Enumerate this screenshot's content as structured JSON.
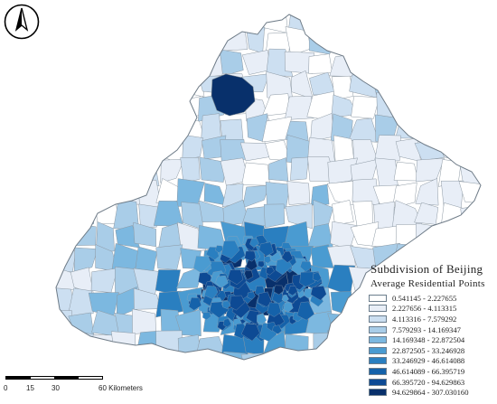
{
  "map": {
    "title": "Subdivision of Beijing",
    "subtitle": "Average Residential Points",
    "outline_color": "#7f8b96",
    "legend": [
      {
        "label": "0.541145 - 2.227655",
        "color": "#ffffff"
      },
      {
        "label": "2.227656 - 4.113315",
        "color": "#e8eef7"
      },
      {
        "label": "4.113316 - 7.579292",
        "color": "#ccdff1"
      },
      {
        "label": "7.579293 - 14.169347",
        "color": "#a9cde8"
      },
      {
        "label": "14.169348 - 22.872504",
        "color": "#7cb8e0"
      },
      {
        "label": "22.872505 - 33.246928",
        "color": "#4a9bd1"
      },
      {
        "label": "33.246929 - 46.614088",
        "color": "#2a7fc0"
      },
      {
        "label": "46.614089 - 66.395719",
        "color": "#1562aa"
      },
      {
        "label": "66.395720 - 94.629863",
        "color": "#0d4a94"
      },
      {
        "label": "94.629864 - 307.030160",
        "color": "#08306b"
      }
    ],
    "scale_bar": {
      "labels": [
        "0",
        "15",
        "30",
        "60 Kilometers"
      ]
    },
    "north_arrow": {
      "name": "north-arrow-icon",
      "letter": "N"
    }
  }
}
